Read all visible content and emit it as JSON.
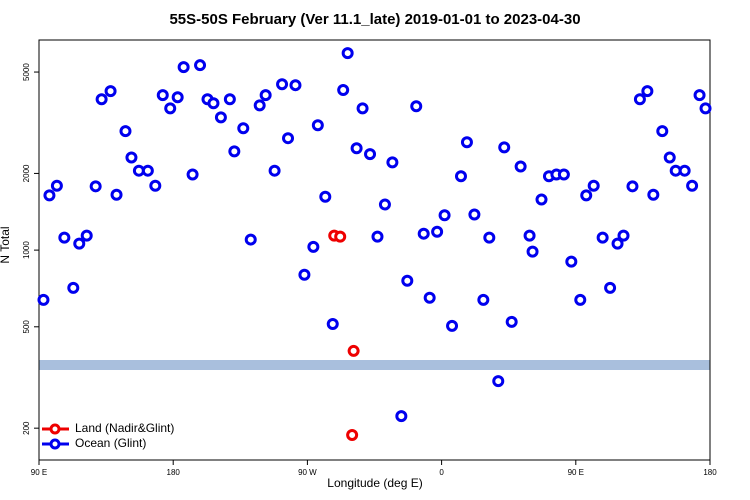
{
  "chart_data": {
    "type": "scatter",
    "title": "55S-50S February (Ver 11.1_late)   2019-01-01 to 2023-04-30",
    "x_label": "Longitude (deg E)",
    "y_label": "N Total",
    "xlim": [
      90,
      540
    ],
    "ylim": [
      150,
      6680
    ],
    "y_log": true,
    "xticks": [
      {
        "value": 90,
        "label": "90 E"
      },
      180,
      {
        "value": 270,
        "label": "90 W"
      },
      {
        "value": 360,
        "label": "0"
      },
      {
        "value": 450,
        "label": "90 E"
      },
      {
        "value": 540,
        "label": "180"
      }
    ],
    "yticks": [
      200,
      500,
      1000,
      2000,
      5000
    ],
    "legend_position": "lower left",
    "series": [
      {
        "name": "Land (Nadir&Glint)",
        "color": "#ee0000",
        "x": [
          288,
          292,
          301,
          300
        ],
        "values": [
          1140,
          1130,
          402,
          188
        ]
      },
      {
        "name": "Ocean (Glint)",
        "color": "#0000ee",
        "x": [
          93,
          97,
          102,
          107,
          113,
          117,
          122,
          128,
          132,
          138,
          142,
          148,
          152,
          157,
          163,
          168,
          173,
          178,
          183,
          187,
          193,
          198,
          203,
          207,
          212,
          218,
          221,
          227,
          232,
          238,
          242,
          248,
          253,
          257,
          262,
          268,
          274,
          277,
          282,
          287,
          294,
          297,
          303,
          307,
          312,
          317,
          322,
          327,
          333,
          337,
          343,
          348,
          352,
          357,
          362,
          367,
          373,
          377,
          382,
          388,
          392,
          398,
          402,
          407,
          413,
          419,
          421,
          427,
          432,
          437,
          442,
          447,
          453,
          457,
          462,
          468,
          473,
          478,
          482,
          488,
          493,
          498,
          502,
          508,
          513,
          517,
          523,
          528,
          533,
          537
        ],
        "values": [
          638,
          1640,
          1790,
          1120,
          711,
          1060,
          1140,
          1780,
          3910,
          4210,
          1650,
          2930,
          2310,
          2050,
          2050,
          1790,
          4060,
          3600,
          3980,
          5230,
          1980,
          5320,
          3910,
          3770,
          3320,
          3910,
          2440,
          3010,
          1100,
          3700,
          4060,
          2050,
          4480,
          2750,
          4440,
          800,
          1030,
          3090,
          1620,
          513,
          4250,
          5930,
          2510,
          3600,
          2380,
          1130,
          1510,
          2210,
          223,
          758,
          3670,
          1160,
          650,
          1180,
          1370,
          504,
          1950,
          2650,
          1380,
          638,
          1120,
          306,
          2530,
          523,
          2130,
          1140,
          986,
          1580,
          1950,
          1980,
          1980,
          901,
          638,
          1640,
          1790,
          1120,
          711,
          1060,
          1140,
          1780,
          3910,
          4210,
          1650,
          2930,
          2310,
          2050,
          2050,
          1790,
          4060,
          3600
        ]
      }
    ]
  }
}
